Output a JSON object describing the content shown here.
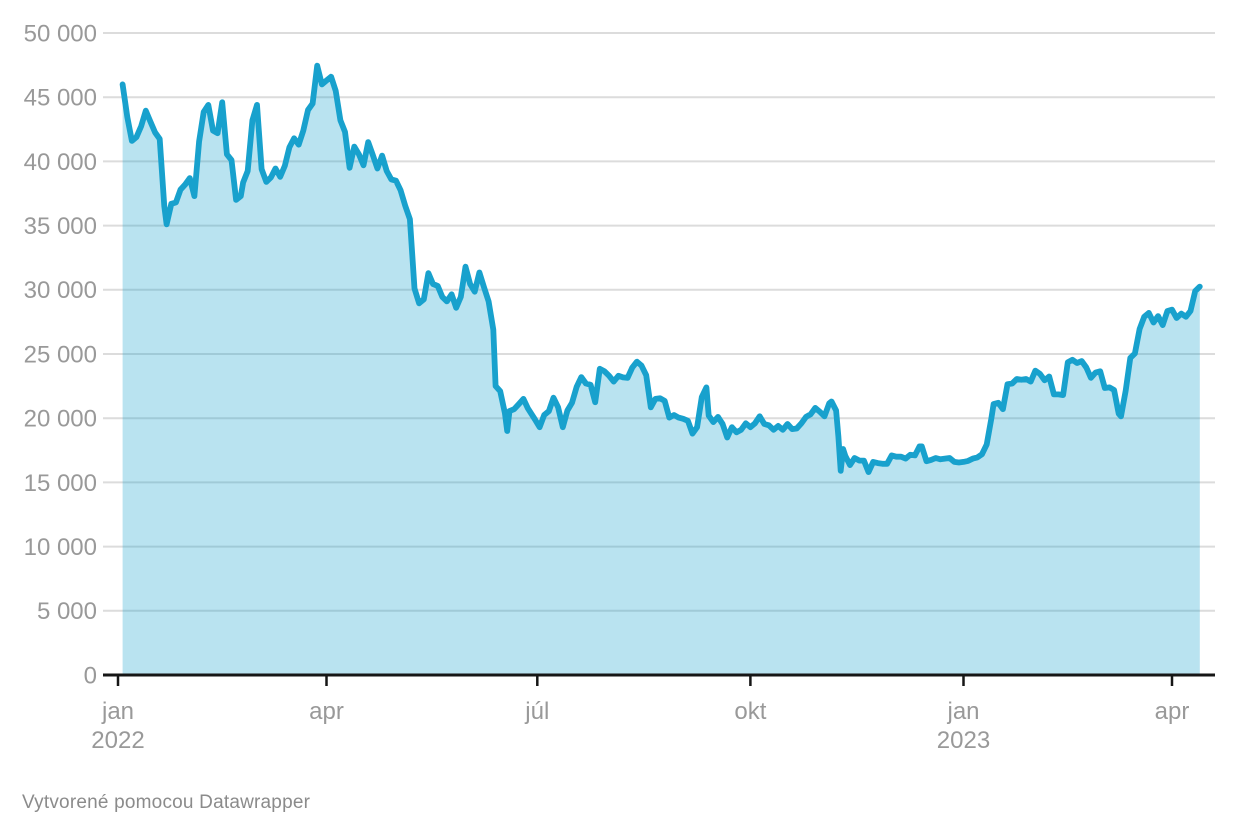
{
  "footer": {
    "attribution": "Vytvorené pomocou Datawrapper"
  },
  "chart_data": {
    "type": "area",
    "title": "",
    "xlabel": "",
    "ylabel": "",
    "grid": true,
    "legend": "none",
    "colors": {
      "line": "#18a1cd",
      "fill": "rgba(24,161,205,0.30)",
      "grid": "#dcdcdc",
      "baseline": "#161616",
      "axis_text": "#999999"
    },
    "y_axis": {
      "range": [
        0,
        50000
      ],
      "tick_interval": 5000,
      "ticks": [
        {
          "value": 0,
          "label": "0"
        },
        {
          "value": 5000,
          "label": "5 000"
        },
        {
          "value": 10000,
          "label": "10 000"
        },
        {
          "value": 15000,
          "label": "15 000"
        },
        {
          "value": 20000,
          "label": "20 000"
        },
        {
          "value": 25000,
          "label": "25 000"
        },
        {
          "value": 30000,
          "label": "30 000"
        },
        {
          "value": 35000,
          "label": "35 000"
        },
        {
          "value": 40000,
          "label": "40 000"
        },
        {
          "value": 45000,
          "label": "45 000"
        },
        {
          "value": 50000,
          "label": "50 000"
        }
      ]
    },
    "x_axis": {
      "range": [
        "2022-01-01",
        "2023-04-19"
      ],
      "ticks": [
        {
          "date": "2022-01-01",
          "label": "jan",
          "year": "2022"
        },
        {
          "date": "2022-04-01",
          "label": "apr"
        },
        {
          "date": "2022-07-01",
          "label": "júl"
        },
        {
          "date": "2022-10-01",
          "label": "okt"
        },
        {
          "date": "2023-01-01",
          "label": "jan",
          "year": "2023"
        },
        {
          "date": "2023-04-01",
          "label": "apr"
        }
      ]
    },
    "points": [
      [
        "2022-01-03",
        46000
      ],
      [
        "2022-01-05",
        43450
      ],
      [
        "2022-01-07",
        41600
      ],
      [
        "2022-01-09",
        41900
      ],
      [
        "2022-01-11",
        42750
      ],
      [
        "2022-01-13",
        43950
      ],
      [
        "2022-01-15",
        43100
      ],
      [
        "2022-01-17",
        42250
      ],
      [
        "2022-01-19",
        41750
      ],
      [
        "2022-01-21",
        36500
      ],
      [
        "2022-01-22",
        35100
      ],
      [
        "2022-01-24",
        36700
      ],
      [
        "2022-01-26",
        36800
      ],
      [
        "2022-01-28",
        37800
      ],
      [
        "2022-01-30",
        38200
      ],
      [
        "2022-02-01",
        38700
      ],
      [
        "2022-02-03",
        37300
      ],
      [
        "2022-02-05",
        41550
      ],
      [
        "2022-02-07",
        43850
      ],
      [
        "2022-02-09",
        44400
      ],
      [
        "2022-02-11",
        42400
      ],
      [
        "2022-02-13",
        42200
      ],
      [
        "2022-02-15",
        44600
      ],
      [
        "2022-02-17",
        40550
      ],
      [
        "2022-02-19",
        40100
      ],
      [
        "2022-02-21",
        37000
      ],
      [
        "2022-02-23",
        37300
      ],
      [
        "2022-02-24",
        38350
      ],
      [
        "2022-02-26",
        39250
      ],
      [
        "2022-02-28",
        43200
      ],
      [
        "2022-03-02",
        44400
      ],
      [
        "2022-03-04",
        39400
      ],
      [
        "2022-03-06",
        38400
      ],
      [
        "2022-03-08",
        38750
      ],
      [
        "2022-03-10",
        39450
      ],
      [
        "2022-03-12",
        38800
      ],
      [
        "2022-03-14",
        39650
      ],
      [
        "2022-03-16",
        41100
      ],
      [
        "2022-03-18",
        41800
      ],
      [
        "2022-03-20",
        41300
      ],
      [
        "2022-03-22",
        42400
      ],
      [
        "2022-03-24",
        44000
      ],
      [
        "2022-03-26",
        44500
      ],
      [
        "2022-03-28",
        47450
      ],
      [
        "2022-03-30",
        46000
      ],
      [
        "2022-04-01",
        46300
      ],
      [
        "2022-04-03",
        46600
      ],
      [
        "2022-04-05",
        45500
      ],
      [
        "2022-04-07",
        43200
      ],
      [
        "2022-04-09",
        42300
      ],
      [
        "2022-04-11",
        39500
      ],
      [
        "2022-04-13",
        41150
      ],
      [
        "2022-04-15",
        40550
      ],
      [
        "2022-04-17",
        39700
      ],
      [
        "2022-04-19",
        41500
      ],
      [
        "2022-04-21",
        40500
      ],
      [
        "2022-04-23",
        39450
      ],
      [
        "2022-04-25",
        40450
      ],
      [
        "2022-04-27",
        39250
      ],
      [
        "2022-04-29",
        38600
      ],
      [
        "2022-05-01",
        38500
      ],
      [
        "2022-05-03",
        37750
      ],
      [
        "2022-05-05",
        36550
      ],
      [
        "2022-05-07",
        35500
      ],
      [
        "2022-05-09",
        30100
      ],
      [
        "2022-05-11",
        28950
      ],
      [
        "2022-05-13",
        29250
      ],
      [
        "2022-05-15",
        31300
      ],
      [
        "2022-05-17",
        30450
      ],
      [
        "2022-05-19",
        30300
      ],
      [
        "2022-05-21",
        29450
      ],
      [
        "2022-05-23",
        29100
      ],
      [
        "2022-05-25",
        29650
      ],
      [
        "2022-05-27",
        28600
      ],
      [
        "2022-05-29",
        29450
      ],
      [
        "2022-05-31",
        31800
      ],
      [
        "2022-06-02",
        30450
      ],
      [
        "2022-06-04",
        29850
      ],
      [
        "2022-06-06",
        31350
      ],
      [
        "2022-06-08",
        30200
      ],
      [
        "2022-06-10",
        29100
      ],
      [
        "2022-06-12",
        26900
      ],
      [
        "2022-06-13",
        22500
      ],
      [
        "2022-06-15",
        22100
      ],
      [
        "2022-06-17",
        20400
      ],
      [
        "2022-06-18",
        19000
      ],
      [
        "2022-06-19",
        20550
      ],
      [
        "2022-06-21",
        20700
      ],
      [
        "2022-06-23",
        21100
      ],
      [
        "2022-06-25",
        21500
      ],
      [
        "2022-06-27",
        20750
      ],
      [
        "2022-06-30",
        19900
      ],
      [
        "2022-07-02",
        19300
      ],
      [
        "2022-07-04",
        20250
      ],
      [
        "2022-07-06",
        20550
      ],
      [
        "2022-07-08",
        21600
      ],
      [
        "2022-07-10",
        20850
      ],
      [
        "2022-07-12",
        19300
      ],
      [
        "2022-07-14",
        20600
      ],
      [
        "2022-07-16",
        21200
      ],
      [
        "2022-07-18",
        22450
      ],
      [
        "2022-07-20",
        23200
      ],
      [
        "2022-07-22",
        22700
      ],
      [
        "2022-07-24",
        22600
      ],
      [
        "2022-07-26",
        21250
      ],
      [
        "2022-07-28",
        23850
      ],
      [
        "2022-07-30",
        23650
      ],
      [
        "2022-08-01",
        23300
      ],
      [
        "2022-08-03",
        22850
      ],
      [
        "2022-08-05",
        23300
      ],
      [
        "2022-08-07",
        23175
      ],
      [
        "2022-08-09",
        23150
      ],
      [
        "2022-08-11",
        23950
      ],
      [
        "2022-08-13",
        24400
      ],
      [
        "2022-08-15",
        24100
      ],
      [
        "2022-08-17",
        23350
      ],
      [
        "2022-08-19",
        20850
      ],
      [
        "2022-08-21",
        21500
      ],
      [
        "2022-08-23",
        21550
      ],
      [
        "2022-08-25",
        21350
      ],
      [
        "2022-08-27",
        20050
      ],
      [
        "2022-08-29",
        20250
      ],
      [
        "2022-08-31",
        20050
      ],
      [
        "2022-09-02",
        19950
      ],
      [
        "2022-09-04",
        19800
      ],
      [
        "2022-09-06",
        18800
      ],
      [
        "2022-09-08",
        19300
      ],
      [
        "2022-09-10",
        21650
      ],
      [
        "2022-09-12",
        22400
      ],
      [
        "2022-09-13",
        20200
      ],
      [
        "2022-09-15",
        19700
      ],
      [
        "2022-09-17",
        20100
      ],
      [
        "2022-09-19",
        19550
      ],
      [
        "2022-09-21",
        18500
      ],
      [
        "2022-09-23",
        19300
      ],
      [
        "2022-09-25",
        18900
      ],
      [
        "2022-09-27",
        19100
      ],
      [
        "2022-09-29",
        19600
      ],
      [
        "2022-10-01",
        19300
      ],
      [
        "2022-10-03",
        19600
      ],
      [
        "2022-10-05",
        20150
      ],
      [
        "2022-10-07",
        19550
      ],
      [
        "2022-10-09",
        19450
      ],
      [
        "2022-10-11",
        19100
      ],
      [
        "2022-10-13",
        19400
      ],
      [
        "2022-10-15",
        19100
      ],
      [
        "2022-10-17",
        19550
      ],
      [
        "2022-10-19",
        19150
      ],
      [
        "2022-10-21",
        19200
      ],
      [
        "2022-10-23",
        19600
      ],
      [
        "2022-10-25",
        20100
      ],
      [
        "2022-10-27",
        20300
      ],
      [
        "2022-10-29",
        20800
      ],
      [
        "2022-10-31",
        20500
      ],
      [
        "2022-11-02",
        20150
      ],
      [
        "2022-11-04",
        21150
      ],
      [
        "2022-11-05",
        21300
      ],
      [
        "2022-11-07",
        20600
      ],
      [
        "2022-11-08",
        18550
      ],
      [
        "2022-11-09",
        15900
      ],
      [
        "2022-11-10",
        17600
      ],
      [
        "2022-11-11",
        17050
      ],
      [
        "2022-11-13",
        16350
      ],
      [
        "2022-11-15",
        16900
      ],
      [
        "2022-11-17",
        16700
      ],
      [
        "2022-11-19",
        16700
      ],
      [
        "2022-11-21",
        15800
      ],
      [
        "2022-11-23",
        16600
      ],
      [
        "2022-11-25",
        16500
      ],
      [
        "2022-11-27",
        16450
      ],
      [
        "2022-11-29",
        16450
      ],
      [
        "2022-12-01",
        17100
      ],
      [
        "2022-12-03",
        17000
      ],
      [
        "2022-12-05",
        17000
      ],
      [
        "2022-12-07",
        16850
      ],
      [
        "2022-12-09",
        17150
      ],
      [
        "2022-12-11",
        17100
      ],
      [
        "2022-12-13",
        17800
      ],
      [
        "2022-12-14",
        17800
      ],
      [
        "2022-12-16",
        16650
      ],
      [
        "2022-12-18",
        16750
      ],
      [
        "2022-12-20",
        16900
      ],
      [
        "2022-12-22",
        16800
      ],
      [
        "2022-12-24",
        16850
      ],
      [
        "2022-12-26",
        16900
      ],
      [
        "2022-12-28",
        16600
      ],
      [
        "2022-12-30",
        16550
      ],
      [
        "2023-01-01",
        16600
      ],
      [
        "2023-01-03",
        16675
      ],
      [
        "2023-01-05",
        16850
      ],
      [
        "2023-01-07",
        16950
      ],
      [
        "2023-01-09",
        17200
      ],
      [
        "2023-01-11",
        17950
      ],
      [
        "2023-01-13",
        19950
      ],
      [
        "2023-01-14",
        21100
      ],
      [
        "2023-01-16",
        21200
      ],
      [
        "2023-01-18",
        20700
      ],
      [
        "2023-01-20",
        22650
      ],
      [
        "2023-01-22",
        22700
      ],
      [
        "2023-01-24",
        23050
      ],
      [
        "2023-01-26",
        23000
      ],
      [
        "2023-01-28",
        23050
      ],
      [
        "2023-01-30",
        22850
      ],
      [
        "2023-02-01",
        23700
      ],
      [
        "2023-02-03",
        23450
      ],
      [
        "2023-02-05",
        22950
      ],
      [
        "2023-02-07",
        23250
      ],
      [
        "2023-02-09",
        21850
      ],
      [
        "2023-02-11",
        21850
      ],
      [
        "2023-02-13",
        21800
      ],
      [
        "2023-02-15",
        24350
      ],
      [
        "2023-02-17",
        24550
      ],
      [
        "2023-02-19",
        24300
      ],
      [
        "2023-02-21",
        24450
      ],
      [
        "2023-02-23",
        23950
      ],
      [
        "2023-02-25",
        23150
      ],
      [
        "2023-02-27",
        23550
      ],
      [
        "2023-03-01",
        23650
      ],
      [
        "2023-03-03",
        22350
      ],
      [
        "2023-03-05",
        22400
      ],
      [
        "2023-03-07",
        22200
      ],
      [
        "2023-03-09",
        20350
      ],
      [
        "2023-03-10",
        20150
      ],
      [
        "2023-03-12",
        22150
      ],
      [
        "2023-03-14",
        24700
      ],
      [
        "2023-03-16",
        25050
      ],
      [
        "2023-03-18",
        26950
      ],
      [
        "2023-03-20",
        27900
      ],
      [
        "2023-03-22",
        28200
      ],
      [
        "2023-03-24",
        27450
      ],
      [
        "2023-03-26",
        27950
      ],
      [
        "2023-03-28",
        27250
      ],
      [
        "2023-03-30",
        28350
      ],
      [
        "2023-04-01",
        28450
      ],
      [
        "2023-04-03",
        27800
      ],
      [
        "2023-04-05",
        28150
      ],
      [
        "2023-04-07",
        27900
      ],
      [
        "2023-04-09",
        28350
      ],
      [
        "2023-04-11",
        29900
      ],
      [
        "2023-04-13",
        30250
      ]
    ]
  }
}
